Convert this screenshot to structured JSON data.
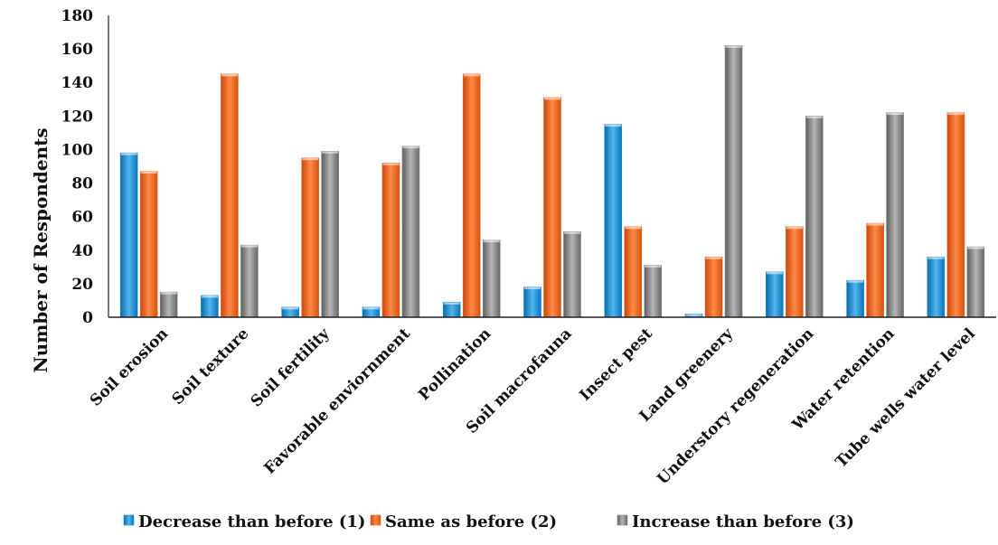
{
  "chart_data": {
    "type": "bar",
    "title": "",
    "xlabel": "",
    "ylabel": "Number of Respondents",
    "ylim": [
      0,
      180
    ],
    "yticks": [
      0,
      20,
      40,
      60,
      80,
      100,
      120,
      140,
      160,
      180
    ],
    "grid": false,
    "legend_position": "bottom",
    "categories": [
      "Soil erosion",
      "Soil texture",
      "Soil fertility",
      "Favorable enviornment",
      "Pollination",
      "Soil macrofauna",
      "Insect pest",
      "Land greenery",
      "Understory regeneration",
      "Water retention",
      "Tube wells water level"
    ],
    "series": [
      {
        "name": "Decrease than before (1)",
        "color": "#1a8fd6",
        "values": [
          98,
          13,
          6,
          6,
          9,
          18,
          115,
          2,
          27,
          22,
          36
        ]
      },
      {
        "name": "Same as before (2)",
        "color": "#f26522",
        "values": [
          87,
          145,
          95,
          92,
          145,
          131,
          54,
          36,
          54,
          56,
          122
        ]
      },
      {
        "name": "Increase than before (3)",
        "color": "#8a8a8a",
        "values": [
          15,
          43,
          99,
          102,
          46,
          51,
          31,
          162,
          120,
          122,
          42
        ]
      }
    ]
  }
}
